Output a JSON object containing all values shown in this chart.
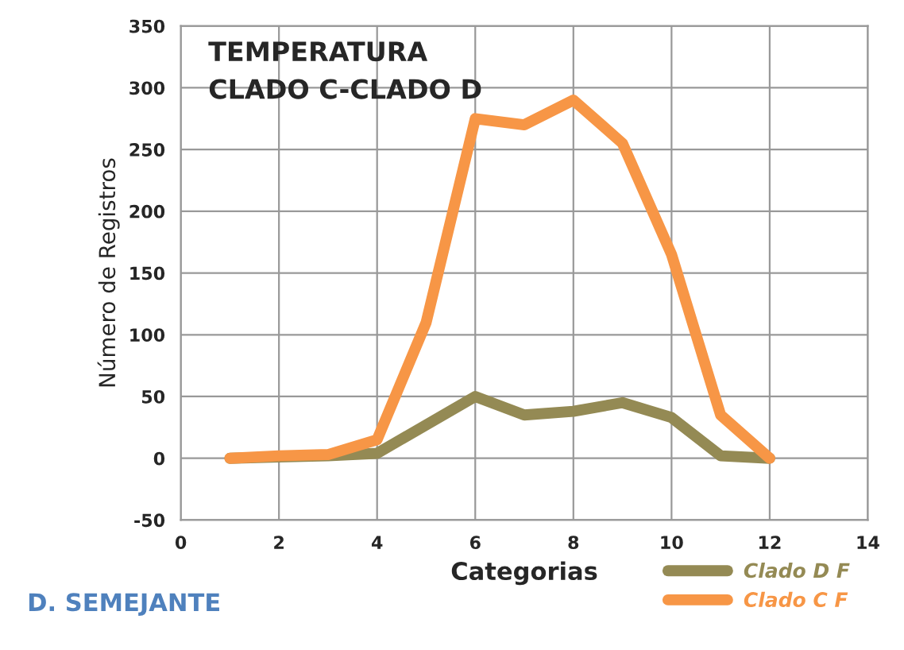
{
  "chart_data": {
    "type": "line",
    "title": "TEMPERATURA\nCLADO C-CLADO D",
    "xlabel": "Categorias",
    "ylabel": "Número de Registros",
    "x": [
      1,
      2,
      3,
      4,
      5,
      6,
      7,
      8,
      9,
      10,
      11,
      12
    ],
    "series": [
      {
        "name": "Clado D F",
        "color": "#948a54",
        "values": [
          0,
          1,
          2,
          4,
          27,
          50,
          35,
          38,
          45,
          33,
          2,
          0
        ]
      },
      {
        "name": "Clado C F",
        "color": "#f79646",
        "values": [
          0,
          2,
          3,
          15,
          110,
          275,
          270,
          290,
          255,
          165,
          35,
          0
        ]
      }
    ],
    "xlim": [
      0,
      14
    ],
    "xticks": [
      0,
      2,
      4,
      6,
      8,
      10,
      12,
      14
    ],
    "ylim": [
      -50,
      350
    ],
    "yticks": [
      -50,
      0,
      50,
      100,
      150,
      200,
      250,
      300,
      350
    ],
    "grid": true,
    "legend": "bottom right",
    "line_style": "solid",
    "marker": "none",
    "annotations": [
      "D. SEMEJANTE"
    ]
  }
}
